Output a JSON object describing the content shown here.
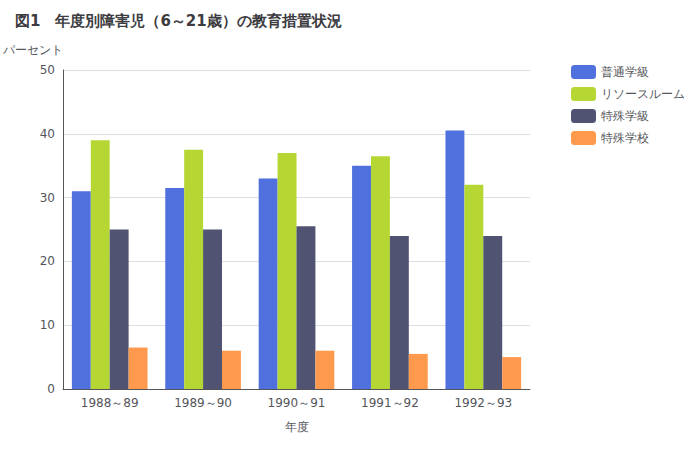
{
  "chart_data": {
    "type": "bar",
    "title": "図1　年度別障害児（6～21歳）の教育措置状況",
    "xlabel": "年度",
    "ylabel": "パーセント",
    "categories": [
      "1988～89",
      "1989～90",
      "1990～91",
      "1991～92",
      "1992～93"
    ],
    "series": [
      {
        "name": "普通学級",
        "values": [
          31.0,
          31.5,
          33.0,
          35.0,
          40.5
        ]
      },
      {
        "name": "リソースルーム",
        "values": [
          39.0,
          37.5,
          37.0,
          36.5,
          32.0
        ]
      },
      {
        "name": "特殊学級",
        "values": [
          25.0,
          25.0,
          25.5,
          24.0,
          24.0
        ]
      },
      {
        "name": "特殊学校",
        "values": [
          6.5,
          6.0,
          6.0,
          5.5,
          5.0
        ]
      }
    ],
    "ylim": [
      0,
      50
    ],
    "yticks": [
      0,
      10,
      20,
      30,
      40,
      50
    ],
    "grid": true,
    "legend": "right"
  }
}
